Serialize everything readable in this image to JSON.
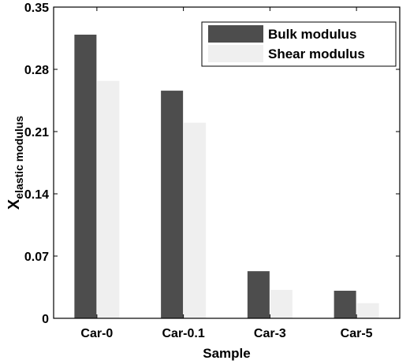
{
  "chart_data": {
    "type": "bar",
    "title": "",
    "xlabel": "Sample",
    "ylabel": {
      "main": "X",
      "subscript": "elastic modulus"
    },
    "categories": [
      "Car-0",
      "Car-0.1",
      "Car-3",
      "Car-5"
    ],
    "series": [
      {
        "name": "Bulk modulus",
        "color": "#4d4d4d",
        "values": [
          0.319,
          0.256,
          0.053,
          0.031
        ]
      },
      {
        "name": "Shear modulus",
        "color": "#efefef",
        "values": [
          0.267,
          0.22,
          0.032,
          0.017
        ]
      }
    ],
    "ylim": [
      0,
      0.35
    ],
    "yticks": [
      "0",
      "0.07",
      "0.14",
      "0.21",
      "0.28",
      "0.35"
    ],
    "grid": false,
    "legend_position": "top-right"
  }
}
